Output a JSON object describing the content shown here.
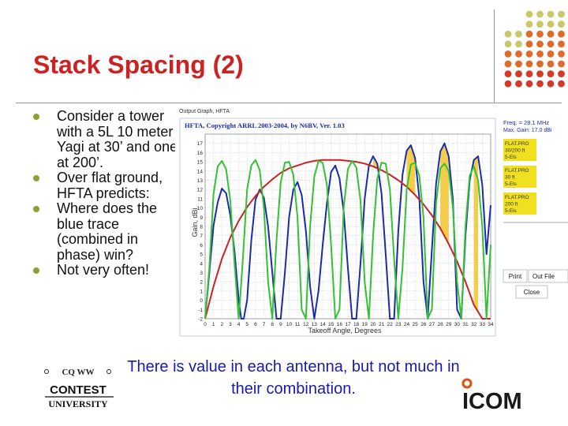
{
  "slide": {
    "title": "Stack Spacing (2)",
    "bullets": [
      "Consider a tower with a 5L 10 meter Yagi at 30’ and one at 200’.",
      "Over flat ground, HFTA predicts:",
      "Where does the blue trace (combined in phase) win?",
      "Not very often!"
    ],
    "footer_text": "There is value in each antenna, but not much in their combination.",
    "colors": {
      "title": "#cc2222",
      "footer": "#1a1aa8",
      "bullet": "#8fa032"
    }
  },
  "hfta": {
    "window_title": "Output Graph, HFTA",
    "graph_title": "HFTA, Copyright ARRL 2003-2004, by N6BV, Ver. 1.03",
    "ylabel": "Gain, dBi",
    "xlabel": "Takeoff Angle, Degrees",
    "freq": "Freq. = 28.1 MHz",
    "max_gain": "Max. Gain: 17.0 dBi",
    "legend": [
      {
        "lines": [
          "FLAT.PRO",
          "30/200 ft",
          "5-Els"
        ],
        "color": "#f0e020"
      },
      {
        "lines": [
          "FLAT.PRO",
          "30 ft",
          "5-Els"
        ],
        "color": "#f0e020"
      },
      {
        "lines": [
          "FLAT.PRO",
          "200 ft",
          "5-Els"
        ],
        "color": "#f0e020"
      }
    ],
    "buttons": [
      "Print",
      "Out File",
      "Close"
    ]
  },
  "logos": {
    "left_top": "CQ WW",
    "left_mid": "CONTEST",
    "left_bottom": "UNIVERSITY",
    "right": "ICOM"
  },
  "chart_data": {
    "type": "line",
    "title": "HFTA, Copyright ARRL 2003-2004, by N6BV, Ver. 1.03",
    "xlabel": "Takeoff Angle, Degrees",
    "ylabel": "Gain, dBi",
    "xlim": [
      0,
      34
    ],
    "ylim": [
      -2,
      18
    ],
    "x_ticks": [
      0,
      1,
      2,
      3,
      4,
      5,
      6,
      7,
      8,
      9,
      10,
      11,
      12,
      13,
      14,
      15,
      16,
      17,
      18,
      19,
      20,
      21,
      22,
      23,
      24,
      25,
      26,
      27,
      28,
      29,
      30,
      31,
      32,
      33,
      34
    ],
    "y_ticks": [
      -2,
      -1,
      0,
      1,
      2,
      3,
      4,
      5,
      6,
      7,
      8,
      9,
      10,
      11,
      12,
      13,
      14,
      15,
      16,
      17
    ],
    "grid": true,
    "series": [
      {
        "name": "FLAT.PRO 30/200 ft 5-Els",
        "color": "#1c2ca8",
        "x": [
          0,
          0.5,
          1,
          1.5,
          2,
          2.5,
          3,
          3.5,
          4,
          4.3,
          4.6,
          5,
          5.5,
          6,
          6.5,
          7,
          7.5,
          8,
          8.5,
          9,
          9.5,
          10,
          10.5,
          11,
          11.5,
          12,
          12.5,
          13,
          13.5,
          14,
          14.5,
          15,
          15.5,
          16,
          16.5,
          17,
          17.5,
          18,
          18.5,
          19,
          19.5,
          20,
          20.5,
          21,
          21.5,
          22,
          22.5,
          23,
          23.5,
          24,
          24.5,
          25,
          25.5,
          26,
          26.5,
          27,
          27.5,
          28,
          28.5,
          29,
          29.5,
          30,
          30.5,
          31,
          31.5,
          32,
          32.5,
          33,
          33.5,
          34
        ],
        "values": [
          -2,
          3.0,
          8.1,
          10.6,
          12.1,
          11.6,
          9.2,
          5.3,
          0,
          -2,
          -2,
          0,
          6.5,
          10.9,
          12.0,
          11.1,
          8.0,
          3.0,
          -2,
          -2,
          3,
          9,
          12.0,
          12.8,
          11.4,
          7.5,
          1.5,
          -2,
          1,
          6,
          10.5,
          13.9,
          14.6,
          13.2,
          9.6,
          3.5,
          -2,
          -2,
          4,
          11,
          14.6,
          15.6,
          14.8,
          11.6,
          5,
          -2,
          -2,
          7.5,
          13.6,
          16.2,
          16.8,
          15.4,
          11.1,
          2,
          -2,
          5.5,
          12.6,
          16.1,
          17.0,
          15.6,
          10.9,
          -1,
          -2,
          7,
          13.0,
          15.2,
          15.6,
          12.5,
          5,
          10.3
        ]
      },
      {
        "name": "FLAT.PRO 30 ft 5-Els",
        "color": "#cc2222",
        "x": [
          0,
          1,
          2,
          3,
          4,
          5,
          6,
          7,
          8,
          9,
          10,
          11,
          12,
          13,
          14,
          15,
          16,
          17,
          18,
          19,
          20,
          21,
          22,
          23,
          24,
          25,
          26,
          27,
          28,
          29,
          30,
          31,
          32,
          33,
          34
        ],
        "values": [
          -2,
          1.5,
          4.5,
          6.8,
          8.6,
          10.1,
          11.3,
          12.3,
          13.1,
          13.8,
          14.3,
          14.6,
          14.9,
          15.1,
          15.2,
          15.2,
          15.2,
          15.1,
          15.0,
          14.8,
          14.5,
          14.1,
          13.6,
          13.0,
          12.3,
          11.4,
          10.4,
          9.2,
          7.8,
          6.1,
          4.2,
          2.0,
          -0.5,
          -2,
          -2
        ]
      },
      {
        "name": "FLAT.PRO 200 ft 5-Els",
        "color": "#33c233",
        "x": [
          0,
          0.5,
          1,
          1.5,
          2,
          2.5,
          3,
          3.5,
          4,
          4.5,
          5,
          5.5,
          6,
          6.5,
          7,
          7.5,
          8,
          8.5,
          9,
          9.5,
          10,
          10.5,
          11,
          11.5,
          12,
          12.5,
          13,
          13.5,
          14,
          14.5,
          15,
          15.5,
          16,
          16.5,
          17,
          17.5,
          18,
          18.5,
          19,
          19.5,
          20,
          20.5,
          21,
          21.5,
          22,
          22.5,
          23,
          23.5,
          24,
          24.5,
          25,
          25.5,
          26,
          26.5,
          27,
          27.5,
          28,
          28.5,
          29,
          29.5,
          30,
          30.5,
          31,
          31.5,
          32,
          32.5,
          33,
          33.5,
          34
        ],
        "values": [
          -2,
          3.5,
          11.5,
          14.5,
          15.1,
          14.2,
          10.8,
          4.0,
          -2,
          4.5,
          12.0,
          14.6,
          15.2,
          14.1,
          10.0,
          2.0,
          -2,
          6.5,
          12.8,
          14.9,
          15.0,
          13.6,
          9.0,
          -1,
          -2,
          8.0,
          13.4,
          15.1,
          14.9,
          12.5,
          6.0,
          -2,
          -1,
          10.0,
          14.2,
          15.1,
          14.4,
          10.8,
          2.0,
          -2,
          7.0,
          13.2,
          14.9,
          14.8,
          12.0,
          4.5,
          -2,
          3.5,
          12.0,
          14.7,
          14.9,
          13.5,
          9.0,
          -2,
          -1,
          10.5,
          14.3,
          14.8,
          14.0,
          10.0,
          2.0,
          -2,
          8.0,
          13.5,
          14.5,
          13.0,
          8.0,
          -2,
          6.0
        ]
      }
    ]
  }
}
